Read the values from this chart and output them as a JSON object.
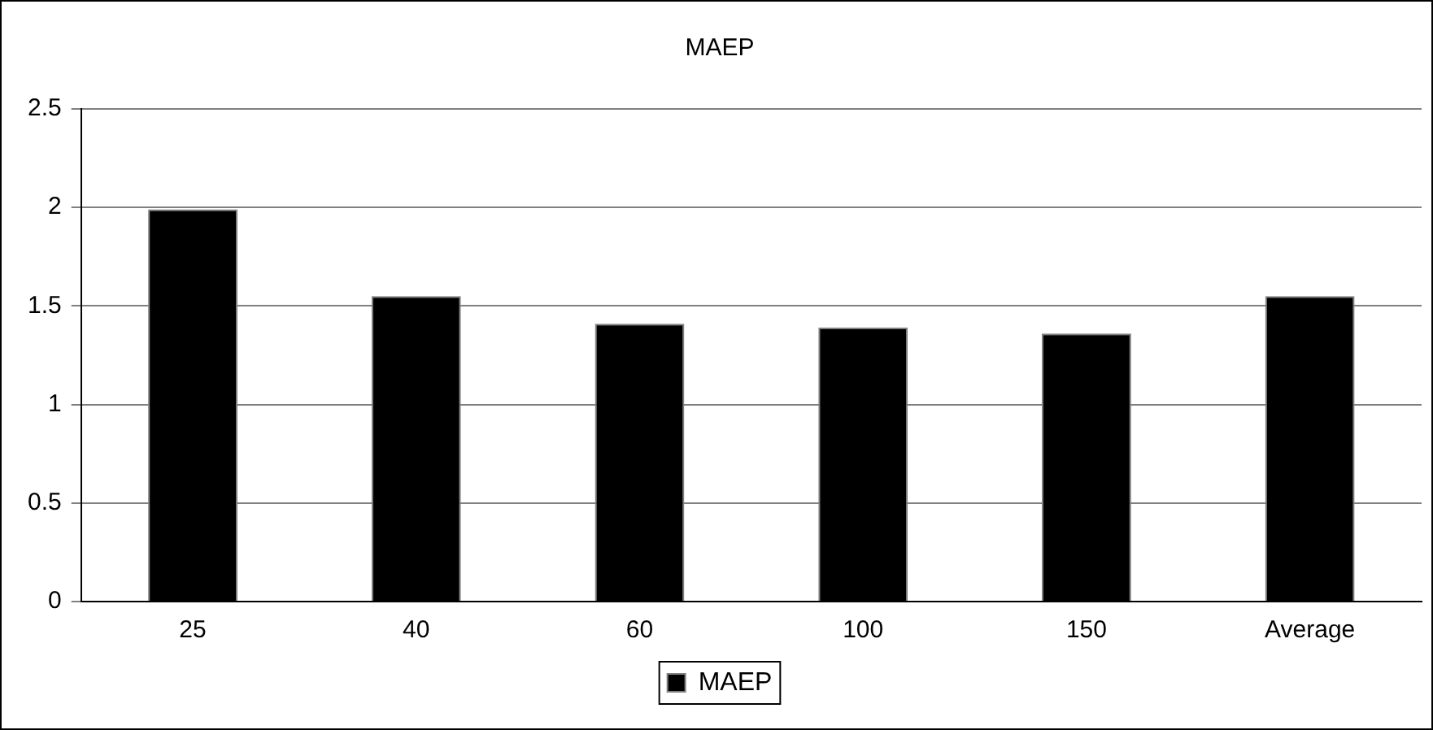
{
  "chart_data": {
    "type": "bar",
    "title": "MAEP",
    "categories": [
      "25",
      "40",
      "60",
      "100",
      "150",
      "Average"
    ],
    "series": [
      {
        "name": "MAEP",
        "color": "#000000",
        "values": [
          1.99,
          1.55,
          1.41,
          1.39,
          1.36,
          1.55
        ]
      }
    ],
    "ylim": [
      0,
      2.5
    ],
    "yticks": [
      0,
      0.5,
      1,
      1.5,
      2,
      2.5
    ],
    "grid": "y",
    "legend": "bottom"
  }
}
